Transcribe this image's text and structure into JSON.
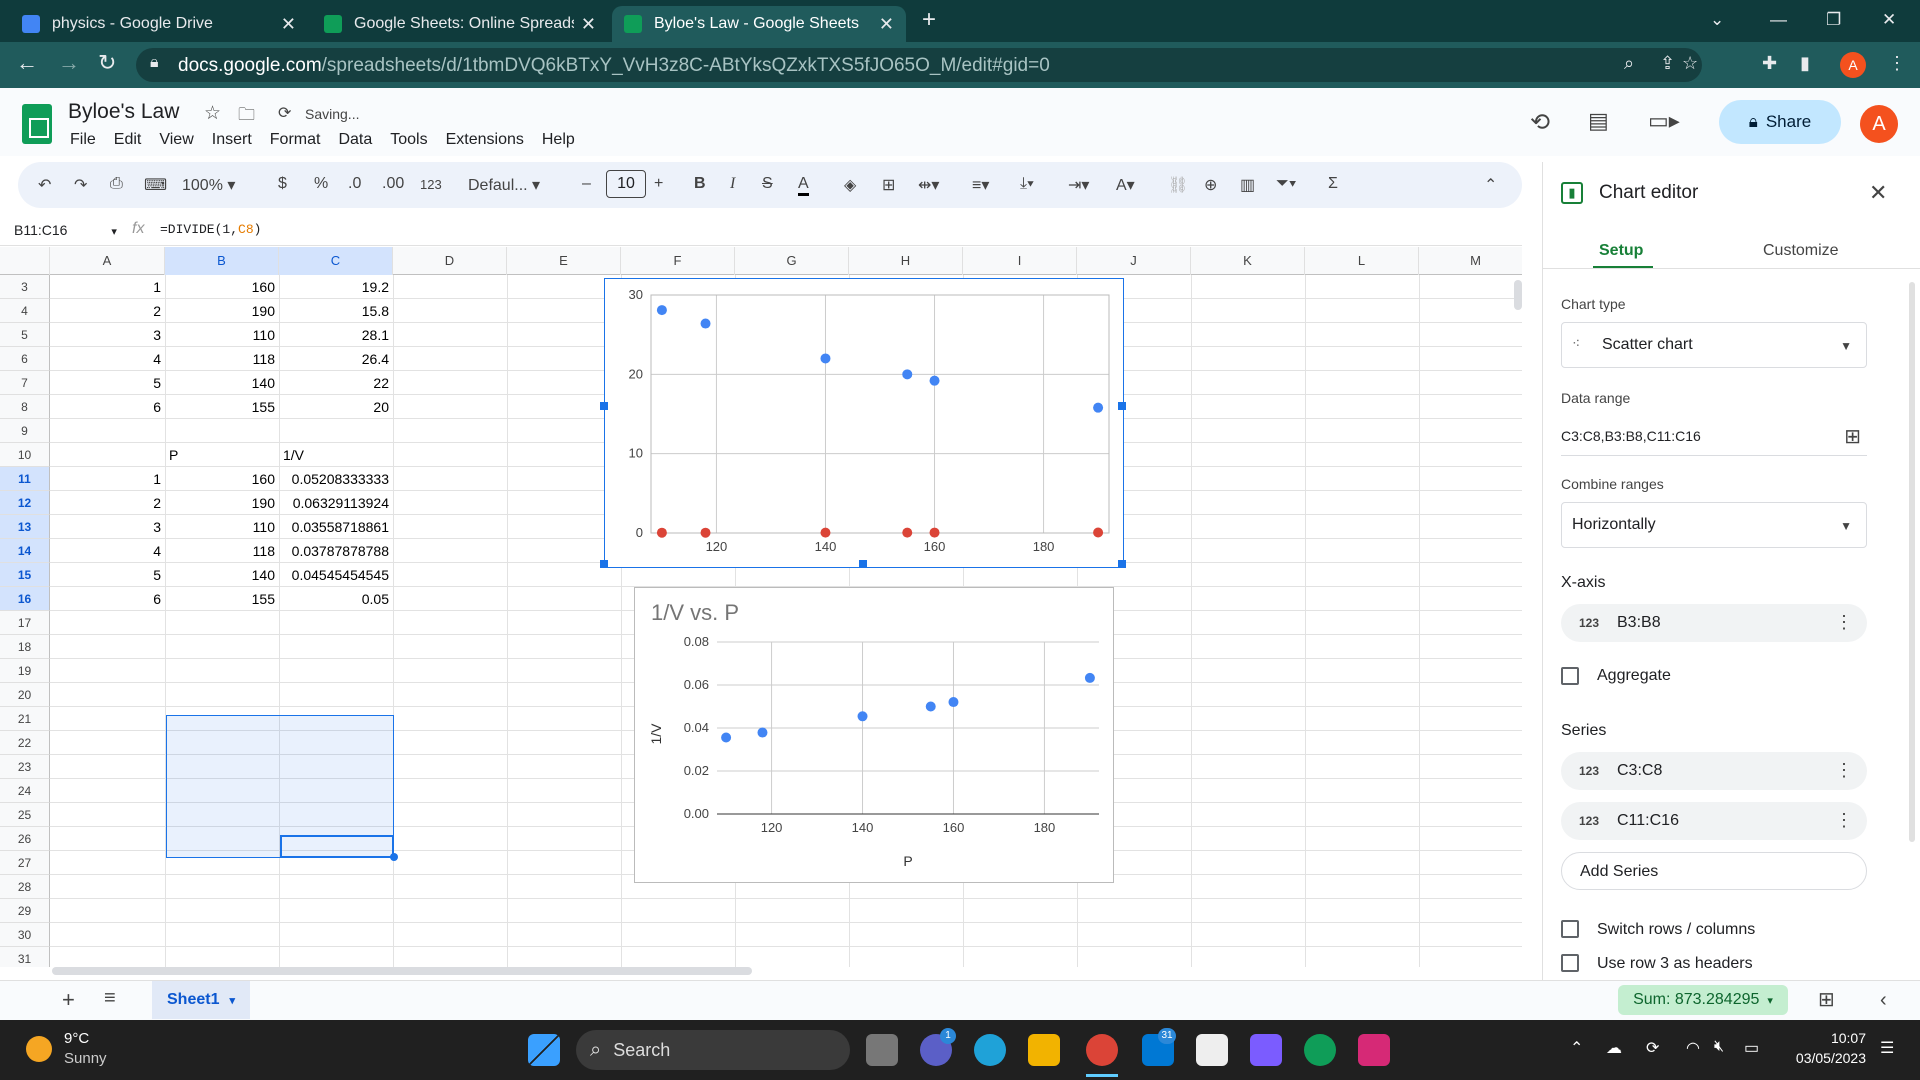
{
  "browser": {
    "tabs": [
      {
        "title": "physics - Google Drive",
        "color": "#4285f4"
      },
      {
        "title": "Google Sheets: Online Spreadsheets",
        "color": "#0f9d58"
      },
      {
        "title": "Byloe's Law - Google Sheets",
        "color": "#0f9d58"
      }
    ],
    "url_host": "docs.google.com",
    "url_path": "/spreadsheets/d/1tbmDVQ6kBTxY_VvH3z8C-ABtYksQZxkTXS5fJO65O_M/edit#gid=0"
  },
  "app": {
    "doc_title": "Byloe's Law",
    "saving_status": "Saving...",
    "menus": [
      "File",
      "Edit",
      "View",
      "Insert",
      "Format",
      "Data",
      "Tools",
      "Extensions",
      "Help"
    ],
    "share_label": "Share",
    "avatar_letter": "A"
  },
  "toolbar": {
    "zoom": "100%",
    "currency": "$",
    "percent": "%",
    "dec_decrease": ".0",
    "dec_increase": ".00",
    "number_format": "123",
    "font": "Defaul...",
    "font_size": "10",
    "bold": "B",
    "italic": "I",
    "minus": "–",
    "plus": "+"
  },
  "formula_bar": {
    "name_box": "B11:C16",
    "fx": "fx",
    "formula_prefix": "=DIVIDE(1,",
    "formula_ref": "C8",
    "formula_suffix": ")"
  },
  "grid": {
    "columns": [
      "A",
      "B",
      "C",
      "D",
      "E",
      "F",
      "G",
      "H",
      "I",
      "J",
      "K",
      "L",
      "M"
    ],
    "rows": [
      "3",
      "4",
      "5",
      "6",
      "7",
      "8",
      "9",
      "10",
      "11",
      "12",
      "13",
      "14",
      "15",
      "16",
      "17",
      "18",
      "19",
      "20",
      "21",
      "22",
      "23",
      "24",
      "25",
      "26",
      "27",
      "28",
      "29",
      "30",
      "31"
    ],
    "data_top": [
      [
        "1",
        "160",
        "19.2"
      ],
      [
        "2",
        "190",
        "15.8"
      ],
      [
        "3",
        "110",
        "28.1"
      ],
      [
        "4",
        "118",
        "26.4"
      ],
      [
        "5",
        "140",
        "22"
      ],
      [
        "6",
        "155",
        "20"
      ]
    ],
    "header_p": "P",
    "header_inv_v": "1/V",
    "data_bottom": [
      [
        "1",
        "160",
        "0.05208333333"
      ],
      [
        "2",
        "190",
        "0.06329113924"
      ],
      [
        "3",
        "110",
        "0.03558718861"
      ],
      [
        "4",
        "118",
        "0.03787878788"
      ],
      [
        "5",
        "140",
        "0.04545454545"
      ],
      [
        "6",
        "155",
        "0.05"
      ]
    ]
  },
  "chart_data": [
    {
      "type": "scatter",
      "title": "",
      "xlabel": "",
      "ylabel": "",
      "x_ticks": [
        "120",
        "140",
        "160",
        "180"
      ],
      "y_ticks": [
        "0",
        "10",
        "20",
        "30"
      ],
      "xlim": [
        108,
        192
      ],
      "ylim": [
        0,
        30
      ],
      "grid": true,
      "series": [
        {
          "name": "C3:C8",
          "color": "#4285f4",
          "points": [
            [
              160,
              19.2
            ],
            [
              190,
              15.8
            ],
            [
              110,
              28.1
            ],
            [
              118,
              26.4
            ],
            [
              140,
              22
            ],
            [
              155,
              20
            ]
          ]
        },
        {
          "name": "C11:C16",
          "color": "#db4437",
          "points": [
            [
              160,
              0.052
            ],
            [
              190,
              0.063
            ],
            [
              110,
              0.036
            ],
            [
              118,
              0.038
            ],
            [
              140,
              0.045
            ],
            [
              155,
              0.05
            ]
          ]
        }
      ]
    },
    {
      "type": "scatter",
      "title": "1/V vs. P",
      "xlabel": "P",
      "ylabel": "1/V",
      "x_ticks": [
        "120",
        "140",
        "160",
        "180"
      ],
      "y_ticks": [
        "0.00",
        "0.02",
        "0.04",
        "0.06",
        "0.08"
      ],
      "xlim": [
        108,
        192
      ],
      "ylim": [
        0,
        0.08
      ],
      "grid": true,
      "series": [
        {
          "color": "#4285f4",
          "points": [
            [
              160,
              0.05208
            ],
            [
              190,
              0.06329
            ],
            [
              110,
              0.03559
            ],
            [
              118,
              0.03788
            ],
            [
              140,
              0.04545
            ],
            [
              155,
              0.05
            ]
          ]
        }
      ]
    }
  ],
  "sheets": {
    "active_sheet": "Sheet1",
    "sum_label": "Sum: 873.284295"
  },
  "chart_editor": {
    "title": "Chart editor",
    "tab_setup": "Setup",
    "tab_customize": "Customize",
    "chart_type_label": "Chart type",
    "chart_type_value": "Scatter chart",
    "data_range_label": "Data range",
    "data_range_value": "C3:C8,B3:B8,C11:C16",
    "combine_label": "Combine ranges",
    "combine_value": "Horizontally",
    "x_axis_label": "X-axis",
    "x_axis_range": "B3:B8",
    "aggregate_label": "Aggregate",
    "series_label": "Series",
    "series": [
      "C3:C8",
      "C11:C16"
    ],
    "add_series": "Add Series",
    "switch_rows": "Switch rows / columns",
    "use_row_headers": "Use row 3 as headers",
    "num_icon": "123"
  },
  "taskbar": {
    "temp": "9°C",
    "weather": "Sunny",
    "search": "Search",
    "time": "10:07",
    "date": "03/05/2023",
    "badge_chat": "1",
    "badge_mail": "31"
  }
}
